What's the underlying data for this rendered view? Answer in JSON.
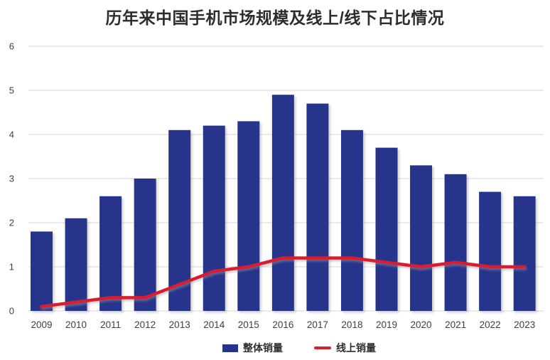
{
  "title": "历年来中国手机市场规模及线上/线下占比情况",
  "colors": {
    "bar": "#26348B",
    "line": "#D81F30",
    "grid": "#D6D6D6",
    "axis_text": "#3F3F3F",
    "title_text": "#2D2D2D",
    "background": "#FFFFFF"
  },
  "legend": {
    "overall_label": "整体销量",
    "online_label": "线上销量"
  },
  "chart_data": {
    "type": "bar",
    "title": "历年来中国手机市场规模及线上/线下占比情况",
    "categories": [
      "2009",
      "2010",
      "2011",
      "2012",
      "2013",
      "2014",
      "2015",
      "2016",
      "2017",
      "2018",
      "2019",
      "2020",
      "2021",
      "2022",
      "2023"
    ],
    "series": [
      {
        "name": "整体销量",
        "type": "bar",
        "color": "#26348B",
        "values": [
          1.8,
          2.1,
          2.6,
          3.0,
          4.1,
          4.2,
          4.3,
          4.9,
          4.7,
          4.1,
          3.7,
          3.3,
          3.1,
          2.7,
          2.6
        ]
      },
      {
        "name": "线上销量",
        "type": "line",
        "color": "#D81F30",
        "values": [
          0.1,
          0.2,
          0.3,
          0.3,
          0.6,
          0.9,
          1.0,
          1.2,
          1.2,
          1.2,
          1.1,
          1.0,
          1.1,
          1.0,
          1.0
        ]
      }
    ],
    "xlabel": "",
    "ylabel": "",
    "ylim": [
      0,
      6
    ],
    "y_ticks": [
      0,
      1,
      2,
      3,
      4,
      5,
      6
    ],
    "grid": true,
    "legend_position": "bottom"
  }
}
